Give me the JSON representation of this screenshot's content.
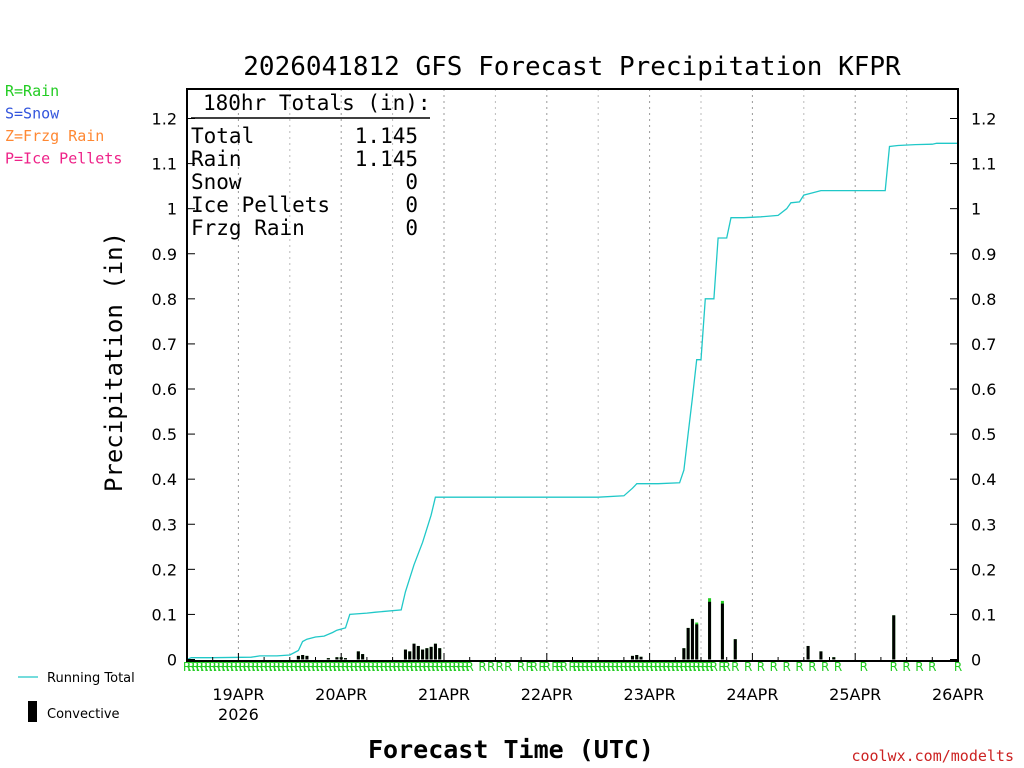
{
  "chart_data": {
    "type": "line",
    "title": "2026041812 GFS Forecast Precipitation KFPR",
    "xlabel": "Forecast Time (UTC)",
    "ylabel": "Precipitation (in)",
    "ylim": [
      0,
      1.25
    ],
    "xlim_hours": [
      0,
      180
    ],
    "yticks": [
      0,
      0.1,
      0.2,
      0.3,
      0.4,
      0.5,
      0.6,
      0.7,
      0.8,
      0.9,
      1,
      1.1,
      1.2
    ],
    "yticklabels": [
      "0",
      "0.1",
      "0.2",
      "0.3",
      "0.4",
      "0.5",
      "0.6",
      "0.7",
      "0.8",
      "0.9",
      "1",
      "1.1",
      "1.2"
    ],
    "xticks": [
      {
        "hour": 12,
        "label": "19APR",
        "sublabel": "2026"
      },
      {
        "hour": 36,
        "label": "20APR",
        "sublabel": ""
      },
      {
        "hour": 60,
        "label": "21APR",
        "sublabel": ""
      },
      {
        "hour": 84,
        "label": "22APR",
        "sublabel": ""
      },
      {
        "hour": 108,
        "label": "23APR",
        "sublabel": ""
      },
      {
        "hour": 132,
        "label": "24APR",
        "sublabel": ""
      },
      {
        "hour": 156,
        "label": "25APR",
        "sublabel": ""
      },
      {
        "hour": 180,
        "label": "26APR",
        "sublabel": ""
      }
    ],
    "minor_grid_hours": [
      24,
      48,
      72,
      96,
      120,
      144,
      168
    ],
    "running_total": {
      "name": "Running Total",
      "color": "#20c8c8",
      "points": [
        [
          0,
          0
        ],
        [
          1,
          0.004
        ],
        [
          6,
          0.004
        ],
        [
          15,
          0.005
        ],
        [
          17,
          0.008
        ],
        [
          21,
          0.008
        ],
        [
          24,
          0.01
        ],
        [
          26,
          0.02
        ],
        [
          27,
          0.04
        ],
        [
          28,
          0.045
        ],
        [
          30,
          0.05
        ],
        [
          32,
          0.052
        ],
        [
          34,
          0.06
        ],
        [
          35,
          0.065
        ],
        [
          37,
          0.07
        ],
        [
          38,
          0.1
        ],
        [
          42,
          0.103
        ],
        [
          44,
          0.105
        ],
        [
          50,
          0.11
        ],
        [
          51,
          0.15
        ],
        [
          53,
          0.21
        ],
        [
          55,
          0.26
        ],
        [
          57,
          0.32
        ],
        [
          58,
          0.36
        ],
        [
          60,
          0.36
        ],
        [
          80,
          0.36
        ],
        [
          96,
          0.36
        ],
        [
          102,
          0.363
        ],
        [
          104,
          0.38
        ],
        [
          105,
          0.39
        ],
        [
          110,
          0.39
        ],
        [
          115,
          0.392
        ],
        [
          116,
          0.42
        ],
        [
          117,
          0.5
        ],
        [
          118,
          0.58
        ],
        [
          119,
          0.665
        ],
        [
          120,
          0.665
        ],
        [
          121,
          0.8
        ],
        [
          123,
          0.8
        ],
        [
          124,
          0.935
        ],
        [
          126,
          0.935
        ],
        [
          127,
          0.98
        ],
        [
          130,
          0.98
        ],
        [
          134,
          0.982
        ],
        [
          138,
          0.985
        ],
        [
          140,
          1.0
        ],
        [
          141,
          1.013
        ],
        [
          143,
          1.015
        ],
        [
          144,
          1.03
        ],
        [
          146,
          1.035
        ],
        [
          148,
          1.04
        ],
        [
          160,
          1.04
        ],
        [
          163,
          1.04
        ],
        [
          164,
          1.138
        ],
        [
          166,
          1.14
        ],
        [
          170,
          1.142
        ],
        [
          174,
          1.143
        ],
        [
          175,
          1.145
        ],
        [
          180,
          1.145
        ]
      ]
    },
    "period_bars": {
      "name": "Convective",
      "rain_color": "#22cc22",
      "conv_color": "#000000",
      "bars": [
        {
          "hour": 26,
          "rain": 0.008,
          "conv": 0.008
        },
        {
          "hour": 27,
          "rain": 0.01,
          "conv": 0.01
        },
        {
          "hour": 28,
          "rain": 0.008,
          "conv": 0.008
        },
        {
          "hour": 33,
          "rain": 0.003,
          "conv": 0.003
        },
        {
          "hour": 35,
          "rain": 0.005,
          "conv": 0.005
        },
        {
          "hour": 36,
          "rain": 0.005,
          "conv": 0.005
        },
        {
          "hour": 37,
          "rain": 0.003,
          "conv": 0.003
        },
        {
          "hour": 40,
          "rain": 0.018,
          "conv": 0.018
        },
        {
          "hour": 41,
          "rain": 0.012,
          "conv": 0.012
        },
        {
          "hour": 51,
          "rain": 0.022,
          "conv": 0.022
        },
        {
          "hour": 52,
          "rain": 0.018,
          "conv": 0.018
        },
        {
          "hour": 53,
          "rain": 0.035,
          "conv": 0.035
        },
        {
          "hour": 54,
          "rain": 0.03,
          "conv": 0.03
        },
        {
          "hour": 55,
          "rain": 0.022,
          "conv": 0.022
        },
        {
          "hour": 56,
          "rain": 0.025,
          "conv": 0.025
        },
        {
          "hour": 57,
          "rain": 0.028,
          "conv": 0.028
        },
        {
          "hour": 58,
          "rain": 0.035,
          "conv": 0.035
        },
        {
          "hour": 59,
          "rain": 0.025,
          "conv": 0.025
        },
        {
          "hour": 104,
          "rain": 0.008,
          "conv": 0.008
        },
        {
          "hour": 105,
          "rain": 0.01,
          "conv": 0.01
        },
        {
          "hour": 106,
          "rain": 0.006,
          "conv": 0.006
        },
        {
          "hour": 116,
          "rain": 0.025,
          "conv": 0.025
        },
        {
          "hour": 117,
          "rain": 0.07,
          "conv": 0.07
        },
        {
          "hour": 118,
          "rain": 0.09,
          "conv": 0.09
        },
        {
          "hour": 119,
          "rain": 0.082,
          "conv": 0.078
        },
        {
          "hour": 122,
          "rain": 0.136,
          "conv": 0.128
        },
        {
          "hour": 125,
          "rain": 0.13,
          "conv": 0.124
        },
        {
          "hour": 128,
          "rain": 0.045,
          "conv": 0.045
        },
        {
          "hour": 145,
          "rain": 0.03,
          "conv": 0.03
        },
        {
          "hour": 148,
          "rain": 0.018,
          "conv": 0.018
        },
        {
          "hour": 151,
          "rain": 0.005,
          "conv": 0.005
        },
        {
          "hour": 165,
          "rain": 0.098,
          "conv": 0.098
        }
      ]
    },
    "precip_type_markers": {
      "color": "#22cc22",
      "hours": [
        0,
        1,
        2,
        3,
        4,
        5,
        6,
        7,
        8,
        9,
        10,
        11,
        12,
        13,
        14,
        15,
        16,
        17,
        18,
        19,
        20,
        21,
        22,
        23,
        24,
        25,
        26,
        27,
        28,
        29,
        30,
        31,
        32,
        33,
        34,
        35,
        36,
        37,
        38,
        39,
        40,
        41,
        42,
        43,
        44,
        45,
        46,
        47,
        48,
        49,
        50,
        51,
        52,
        53,
        54,
        55,
        56,
        57,
        58,
        59,
        60,
        61,
        62,
        63,
        64,
        65,
        66,
        69,
        71,
        73,
        75,
        78,
        80,
        81,
        83,
        84,
        86,
        87,
        88,
        90,
        91,
        92,
        93,
        94,
        95,
        96,
        97,
        98,
        99,
        100,
        101,
        102,
        103,
        104,
        105,
        106,
        107,
        108,
        109,
        110,
        111,
        112,
        113,
        114,
        115,
        116,
        117,
        118,
        119,
        120,
        121,
        122,
        123,
        125,
        126,
        128,
        131,
        134,
        137,
        140,
        143,
        146,
        149,
        152,
        158,
        165,
        168,
        171,
        174,
        180
      ],
      "label": "R"
    },
    "totals_box": {
      "header": "180hr Totals (in):",
      "rows": [
        {
          "label": "Total",
          "value": "1.145"
        },
        {
          "label": "Rain",
          "value": "1.145"
        },
        {
          "label": "Snow",
          "value": "0"
        },
        {
          "label": "Ice Pellets",
          "value": "0"
        },
        {
          "label": "Frzg Rain",
          "value": "0"
        }
      ]
    },
    "legend_top": [
      {
        "text": "R=Rain",
        "color": "#22cc22"
      },
      {
        "text": "S=Snow",
        "color": "#3355dd"
      },
      {
        "text": "Z=Frzg Rain",
        "color": "#ff8833"
      },
      {
        "text": "P=Ice Pellets",
        "color": "#ee2288"
      }
    ],
    "legend_bottom": [
      {
        "text": "Running Total",
        "kind": "line",
        "color": "#20c8c8"
      },
      {
        "text": "Convective",
        "kind": "bar",
        "color": "#000000"
      }
    ],
    "credit": {
      "text": "coolwx.com/modelts",
      "color": "#cc2222"
    }
  }
}
